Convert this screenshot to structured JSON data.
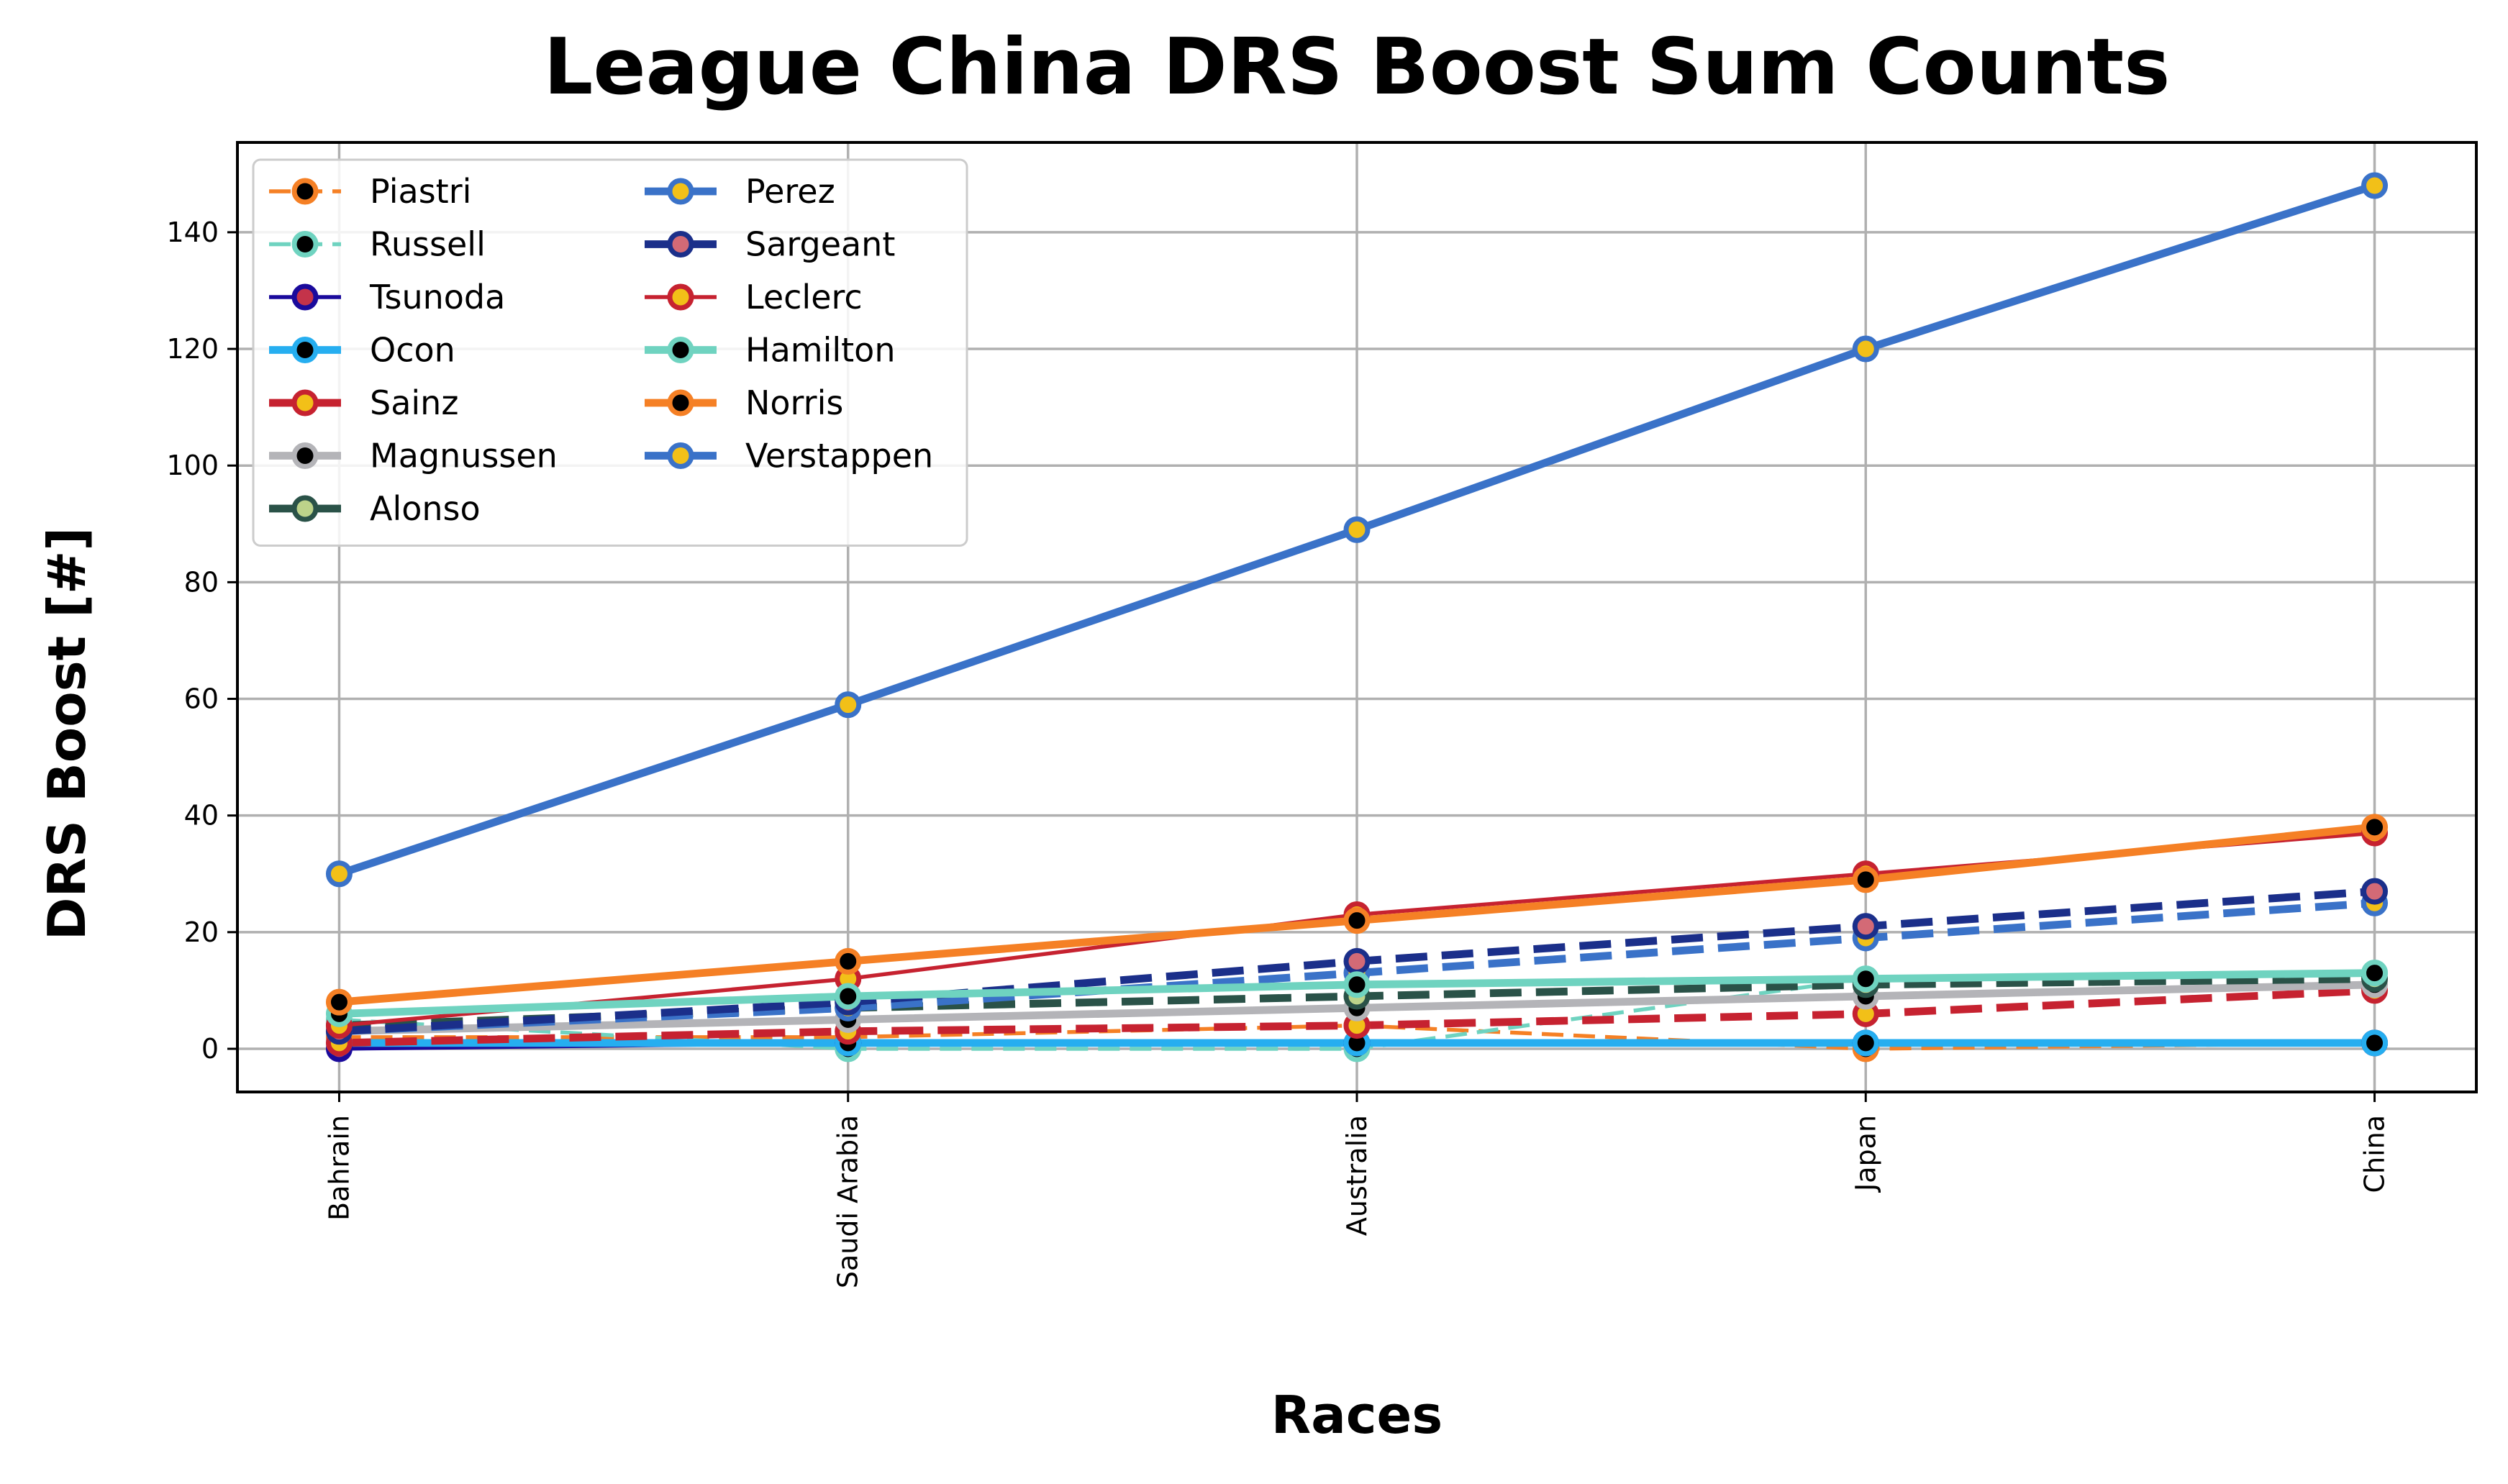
{
  "chart_data": {
    "type": "line",
    "title": "League China DRS Boost Sum Counts",
    "xlabel": "Races",
    "ylabel": "DRS Boost [#]",
    "categories": [
      "Bahrain",
      "Saudi Arabia",
      "Australia",
      "Japan",
      "China"
    ],
    "ylim": [
      -7.4,
      155.4
    ],
    "yticks": [
      0,
      20,
      40,
      60,
      80,
      100,
      120,
      140
    ],
    "grid": true,
    "legend": {
      "placement": "top-left",
      "columns": 2
    },
    "series": [
      {
        "name": "Piastri",
        "values": [
          2,
          2,
          4,
          0,
          1
        ],
        "color": "#f58025",
        "marker_face": "#000000",
        "marker_edge": "#f58025",
        "linestyle": "dashed",
        "linewidth": 4
      },
      {
        "name": "Russell",
        "values": [
          5,
          0,
          0,
          12,
          13
        ],
        "color": "#6fd3c0",
        "marker_face": "#000000",
        "marker_edge": "#6fd3c0",
        "linestyle": "dashed",
        "linewidth": 4
      },
      {
        "name": "Tsunoda",
        "values": [
          0,
          1,
          1,
          1,
          1
        ],
        "color": "#1a0a9c",
        "marker_face": "#c4334a",
        "marker_edge": "#1a0a9c",
        "linestyle": "solid",
        "linewidth": 4
      },
      {
        "name": "Ocon",
        "values": [
          1,
          1,
          1,
          1,
          1
        ],
        "color": "#26aef0",
        "marker_face": "#000000",
        "marker_edge": "#26aef0",
        "linestyle": "solid",
        "linewidth": 8
      },
      {
        "name": "Sainz",
        "values": [
          1,
          3,
          4,
          6,
          10
        ],
        "color": "#c62230",
        "marker_face": "#f2c018",
        "marker_edge": "#c62230",
        "linestyle": "dashed",
        "linewidth": 8
      },
      {
        "name": "Magnussen",
        "values": [
          3,
          5,
          7,
          9,
          11
        ],
        "color": "#b4b4b8",
        "marker_face": "#000000",
        "marker_edge": "#b4b4b8",
        "linestyle": "solid",
        "linewidth": 8
      },
      {
        "name": "Alonso",
        "values": [
          4,
          7,
          9,
          11,
          12
        ],
        "color": "#2a5248",
        "marker_face": "#bcd38a",
        "marker_edge": "#2a5248",
        "linestyle": "dashed",
        "linewidth": 8
      },
      {
        "name": "Perez",
        "values": [
          3,
          7,
          13,
          19,
          25
        ],
        "color": "#3a72c8",
        "marker_face": "#f2c018",
        "marker_edge": "#3a72c8",
        "linestyle": "dashed",
        "linewidth": 8
      },
      {
        "name": "Sargeant",
        "values": [
          3,
          8,
          15,
          21,
          27
        ],
        "color": "#1b2f8a",
        "marker_face": "#d36a76",
        "marker_edge": "#1b2f8a",
        "linestyle": "dashed",
        "linewidth": 8
      },
      {
        "name": "Leclerc",
        "values": [
          4,
          12,
          23,
          30,
          37
        ],
        "color": "#c62230",
        "marker_face": "#f2c018",
        "marker_edge": "#c62230",
        "linestyle": "solid",
        "linewidth": 4
      },
      {
        "name": "Hamilton",
        "values": [
          6,
          9,
          11,
          12,
          13
        ],
        "color": "#6fd3c0",
        "marker_face": "#000000",
        "marker_edge": "#6fd3c0",
        "linestyle": "solid",
        "linewidth": 8
      },
      {
        "name": "Norris",
        "values": [
          8,
          15,
          22,
          29,
          38
        ],
        "color": "#f58025",
        "marker_face": "#000000",
        "marker_edge": "#f58025",
        "linestyle": "solid",
        "linewidth": 8
      },
      {
        "name": "Verstappen",
        "values": [
          30,
          59,
          89,
          120,
          148
        ],
        "color": "#3a72c8",
        "marker_face": "#f2c018",
        "marker_edge": "#3a72c8",
        "linestyle": "solid",
        "linewidth": 8
      }
    ]
  }
}
